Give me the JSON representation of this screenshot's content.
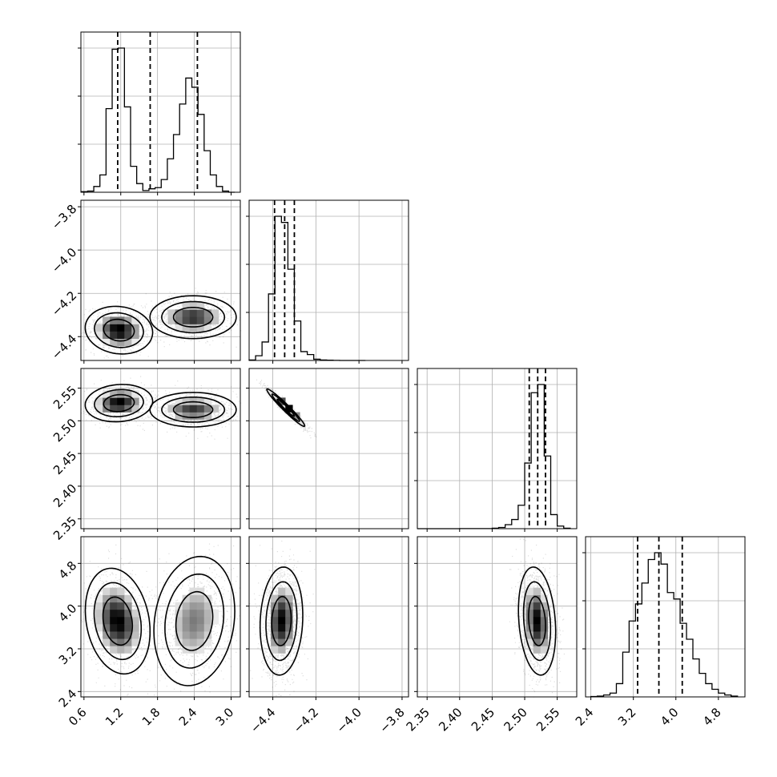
{
  "chart_data": {
    "type": "corner",
    "grid": true,
    "parameters": [
      {
        "index": 0,
        "range": [
          0.55,
          3.15
        ],
        "ticks": [
          "0.6",
          "1.2",
          "1.8",
          "2.4",
          "3.0"
        ],
        "tick_values": [
          0.6,
          1.2,
          1.8,
          2.4,
          3.0
        ],
        "quantiles": [
          1.15,
          1.68,
          2.45
        ]
      },
      {
        "index": 1,
        "range": [
          -4.51,
          -3.77
        ],
        "ticks": [
          "−4.4",
          "−4.2",
          "−4.0",
          "−3.8"
        ],
        "tick_values": [
          -4.4,
          -4.2,
          -4.0,
          -3.8
        ],
        "quantiles": [
          -4.392,
          -4.345,
          -4.3
        ]
      },
      {
        "index": 2,
        "range": [
          2.335,
          2.58
        ],
        "ticks": [
          "2.35",
          "2.40",
          "2.45",
          "2.50",
          "2.55"
        ],
        "tick_values": [
          2.35,
          2.4,
          2.45,
          2.5,
          2.55
        ],
        "quantiles": [
          2.507,
          2.52,
          2.532
        ]
      },
      {
        "index": 3,
        "range": [
          2.3,
          5.3
        ],
        "ticks": [
          "2.4",
          "3.2",
          "4.0",
          "4.8"
        ],
        "tick_values": [
          2.4,
          3.2,
          4.0,
          4.8
        ],
        "quantiles": [
          3.28,
          3.68,
          4.12
        ]
      }
    ],
    "histograms": [
      {
        "param": 0,
        "bin_edges": [
          0.56,
          0.66,
          0.76,
          0.86,
          0.96,
          1.06,
          1.16,
          1.26,
          1.36,
          1.46,
          1.56,
          1.66,
          1.76,
          1.86,
          1.96,
          2.06,
          2.16,
          2.26,
          2.36,
          2.46,
          2.56,
          2.66,
          2.76,
          2.86,
          2.96,
          3.06
        ],
        "counts": [
          1,
          2,
          10,
          30,
          145,
          248,
          250,
          148,
          45,
          15,
          3,
          6,
          8,
          22,
          58,
          100,
          153,
          198,
          182,
          135,
          72,
          30,
          10,
          2,
          0
        ]
      },
      {
        "param": 1,
        "bin_edges": [
          -4.51,
          -4.48,
          -4.45,
          -4.42,
          -4.39,
          -4.36,
          -4.33,
          -4.3,
          -4.27,
          -4.24,
          -4.21,
          -4.18,
          -4.15,
          -4.12,
          -4.09,
          -4.06,
          -4.03,
          -4.0,
          -3.97
        ],
        "counts": [
          4,
          38,
          150,
          540,
          1170,
          1120,
          740,
          320,
          72,
          48,
          10,
          4,
          2,
          1,
          0,
          0,
          0,
          0
        ]
      },
      {
        "param": 2,
        "bin_edges": [
          2.335,
          2.4,
          2.45,
          2.46,
          2.47,
          2.48,
          2.49,
          2.5,
          2.51,
          2.52,
          2.53,
          2.54,
          2.55,
          2.56,
          2.57
        ],
        "counts": [
          0,
          1,
          4,
          10,
          34,
          78,
          200,
          560,
          1160,
          1230,
          620,
          120,
          22,
          4
        ]
      },
      {
        "param": 3,
        "bin_edges": [
          2.4,
          2.52,
          2.64,
          2.76,
          2.88,
          3.0,
          3.12,
          3.24,
          3.36,
          3.48,
          3.6,
          3.72,
          3.84,
          3.96,
          4.08,
          4.2,
          4.32,
          4.44,
          4.56,
          4.68,
          4.8,
          4.92,
          5.04,
          5.16
        ],
        "counts": [
          1,
          2,
          5,
          10,
          35,
          118,
          200,
          245,
          300,
          362,
          380,
          350,
          275,
          258,
          194,
          152,
          100,
          62,
          35,
          20,
          10,
          5,
          2
        ]
      }
    ],
    "pairs": [
      {
        "x": 0,
        "y": 1,
        "blobs": [
          {
            "cx": 1.17,
            "cy": -4.37,
            "sx": 0.25,
            "sy": 0.05,
            "rho": -0.1,
            "w": 0.5
          },
          {
            "cx": 2.38,
            "cy": -4.31,
            "sx": 0.32,
            "sy": 0.045,
            "rho": 0.0,
            "w": 0.5
          }
        ]
      },
      {
        "x": 0,
        "y": 2,
        "blobs": [
          {
            "cx": 1.17,
            "cy": 2.527,
            "sx": 0.25,
            "sy": 0.013,
            "rho": 0.1,
            "w": 0.5
          },
          {
            "cx": 2.38,
            "cy": 2.517,
            "sx": 0.32,
            "sy": 0.012,
            "rho": 0.0,
            "w": 0.5
          }
        ]
      },
      {
        "x": 0,
        "y": 3,
        "blobs": [
          {
            "cx": 1.15,
            "cy": 3.72,
            "sx": 0.24,
            "sy": 0.45,
            "rho": -0.2,
            "w": 0.5
          },
          {
            "cx": 2.4,
            "cy": 3.72,
            "sx": 0.3,
            "sy": 0.55,
            "rho": 0.15,
            "w": 0.5
          }
        ]
      },
      {
        "x": 1,
        "y": 2,
        "blobs": [
          {
            "cx": -4.34,
            "cy": 2.52,
            "sx": 0.04,
            "sy": 0.013,
            "rho": -0.97,
            "w": 1.0
          }
        ]
      },
      {
        "x": 1,
        "y": 3,
        "blobs": [
          {
            "cx": -4.36,
            "cy": 3.72,
            "sx": 0.045,
            "sy": 0.46,
            "rho": 0.1,
            "w": 1.0
          }
        ]
      },
      {
        "x": 2,
        "y": 3,
        "blobs": [
          {
            "cx": 2.519,
            "cy": 3.72,
            "sx": 0.013,
            "sy": 0.46,
            "rho": -0.2,
            "w": 1.0
          }
        ]
      }
    ]
  }
}
